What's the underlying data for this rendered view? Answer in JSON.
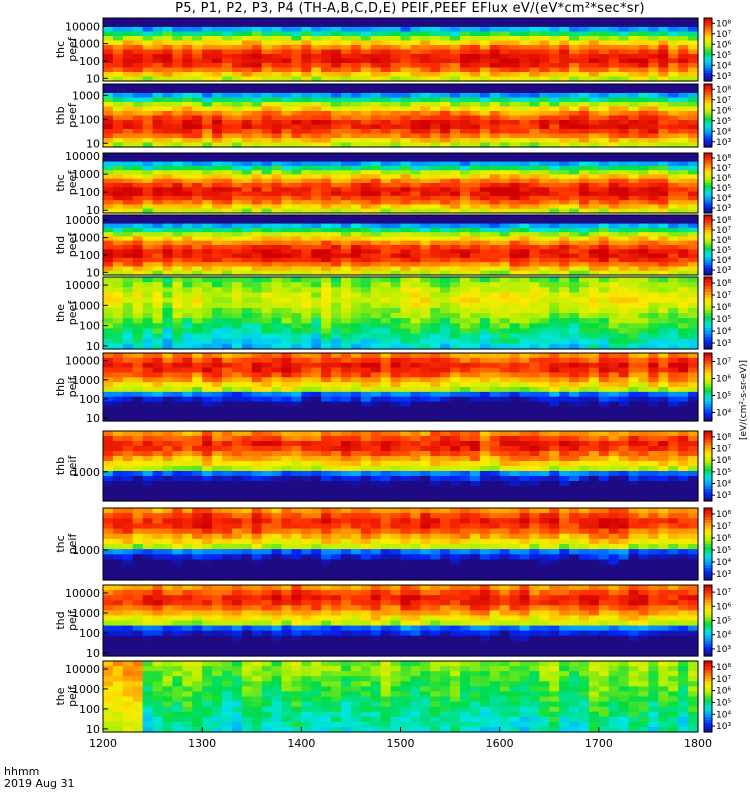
{
  "title": "P5, P1, P2, P3, P4 (TH-A,B,C,D,E) PEIF,PEEF EFlux eV/(eV*cm²*sec*sr)",
  "time_caption": {
    "format": "hhmm",
    "date": "2019 Aug 31"
  },
  "colorbar_unit": "[eV/(cm²-s-sr-eV)]",
  "colormap": [
    "#1e0a82",
    "#0028ff",
    "#0096ff",
    "#00e6e6",
    "#00dc46",
    "#b4f000",
    "#ffeb00",
    "#ff9600",
    "#ff3200",
    "#d20000"
  ],
  "chart_data": {
    "type": "heatmap",
    "xlim": [
      1200,
      1800
    ],
    "xticks": [
      1200,
      1300,
      1400,
      1500,
      1600,
      1700,
      1800
    ],
    "xtick_labels": [
      "1200",
      "1300",
      "1400",
      "1500",
      "1600",
      "1700",
      "1800"
    ],
    "yscale": "log",
    "panels": [
      {
        "ylabel": [
          "thc",
          "peef"
        ],
        "yticks": [
          "10",
          "100",
          "1000",
          "10000"
        ],
        "ylim": [
          7,
          30000
        ],
        "colorbar": {
          "ticks": [
            "10³",
            "10⁴",
            "10⁵",
            "10⁶",
            "10⁷",
            "10⁸"
          ]
        }
      },
      {
        "ylabel": [
          "thb",
          "peef"
        ],
        "yticks": [
          "10",
          "100",
          "1000"
        ],
        "ylim": [
          7,
          3000
        ],
        "colorbar": {
          "ticks": [
            "10³",
            "10⁴",
            "10⁵",
            "10⁶",
            "10⁷",
            "10⁸"
          ]
        }
      },
      {
        "ylabel": [
          "thc",
          "peef"
        ],
        "yticks": [
          "10",
          "100",
          "1000",
          "10000"
        ],
        "ylim": [
          7,
          15000
        ],
        "colorbar": {
          "ticks": [
            "10³",
            "10⁴",
            "10⁵",
            "10⁶",
            "10⁷",
            "10⁸"
          ]
        }
      },
      {
        "ylabel": [
          "thd",
          "peef"
        ],
        "yticks": [
          "10",
          "100",
          "1000",
          "10000"
        ],
        "ylim": [
          7,
          20000
        ],
        "colorbar": {
          "ticks": [
            "10³",
            "10⁴",
            "10⁵",
            "10⁶",
            "10⁷",
            "10⁸"
          ]
        }
      },
      {
        "ylabel": [
          "the",
          "peef"
        ],
        "yticks": [
          "10",
          "100",
          "1000",
          "10000"
        ],
        "ylim": [
          7,
          25000
        ],
        "colorbar": {
          "ticks": [
            "10³",
            "10⁴",
            "10⁵",
            "10⁶",
            "10⁷",
            "10⁸"
          ]
        }
      },
      {
        "ylabel": [
          "thb",
          "peif"
        ],
        "yticks": [
          "10",
          "100",
          "1000",
          "10000"
        ],
        "ylim": [
          7,
          25000
        ],
        "colorbar": {
          "ticks": [
            "10⁴",
            "10⁵",
            "10⁶",
            "10⁷"
          ]
        }
      },
      {
        "ylabel": [
          "thb",
          "peif"
        ],
        "yticks": [
          "1000"
        ],
        "ylim": [
          100,
          25000
        ],
        "colorbar": {
          "ticks": [
            "10³",
            "10⁴",
            "10⁵",
            "10⁶",
            "10⁷",
            "10⁸"
          ]
        }
      },
      {
        "ylabel": [
          "thc",
          "peif"
        ],
        "yticks": [
          "1000"
        ],
        "ylim": [
          100,
          25000
        ],
        "colorbar": {
          "ticks": [
            "10³",
            "10⁴",
            "10⁵",
            "10⁶",
            "10⁷",
            "10⁸"
          ]
        }
      },
      {
        "ylabel": [
          "thd",
          "peif"
        ],
        "yticks": [
          "10",
          "100",
          "1000",
          "10000"
        ],
        "ylim": [
          7,
          25000
        ],
        "colorbar": {
          "ticks": [
            "10³",
            "10⁴",
            "10⁵",
            "10⁶",
            "10⁷"
          ]
        }
      },
      {
        "ylabel": [
          "the",
          "peif"
        ],
        "yticks": [
          "10",
          "100",
          "1000",
          "10000"
        ],
        "ylim": [
          7,
          25000
        ],
        "colorbar": {
          "ticks": [
            "10³",
            "10⁴",
            "10⁵",
            "10⁶",
            "10⁷",
            "10⁸"
          ]
        }
      }
    ]
  }
}
